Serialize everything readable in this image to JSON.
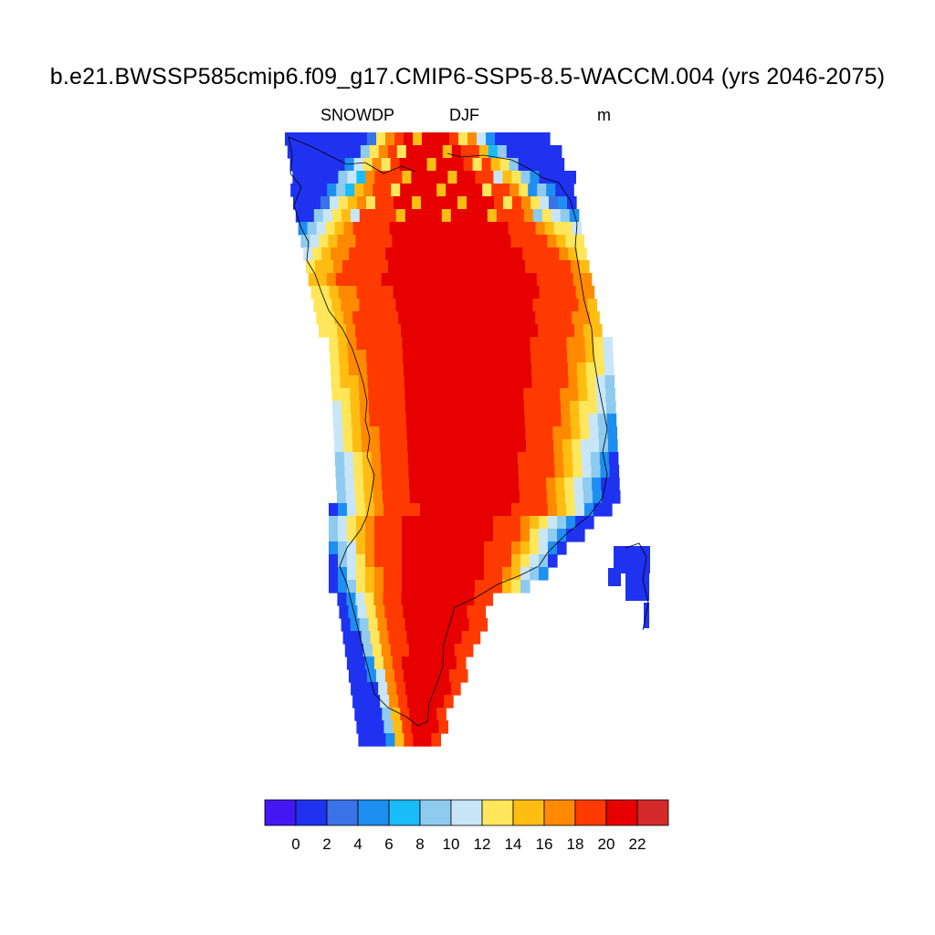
{
  "title": "b.e21.BWSSP585cmip6.f09_g17.CMIP6-SSP5-8.5-WACCM.004 (yrs 2046-2075)",
  "subtitle_left": "SNOWDP",
  "subtitle_center": "DJF",
  "subtitle_right": "m",
  "colorbar": {
    "colors": [
      "#4416f2",
      "#1e32f0",
      "#3a72e8",
      "#1e8ff0",
      "#19bcf7",
      "#8ecbef",
      "#c8e6f8",
      "#ffe65a",
      "#ffbd12",
      "#ff8a00",
      "#ff3a00",
      "#e60000",
      "#d42a2a"
    ],
    "tick_labels": [
      "0",
      "2",
      "4",
      "6",
      "8",
      "10",
      "12",
      "14",
      "16",
      "18",
      "20",
      "22"
    ]
  },
  "colors": {
    "ocean_background": "#ffffff",
    "coastline": "#000000"
  }
}
